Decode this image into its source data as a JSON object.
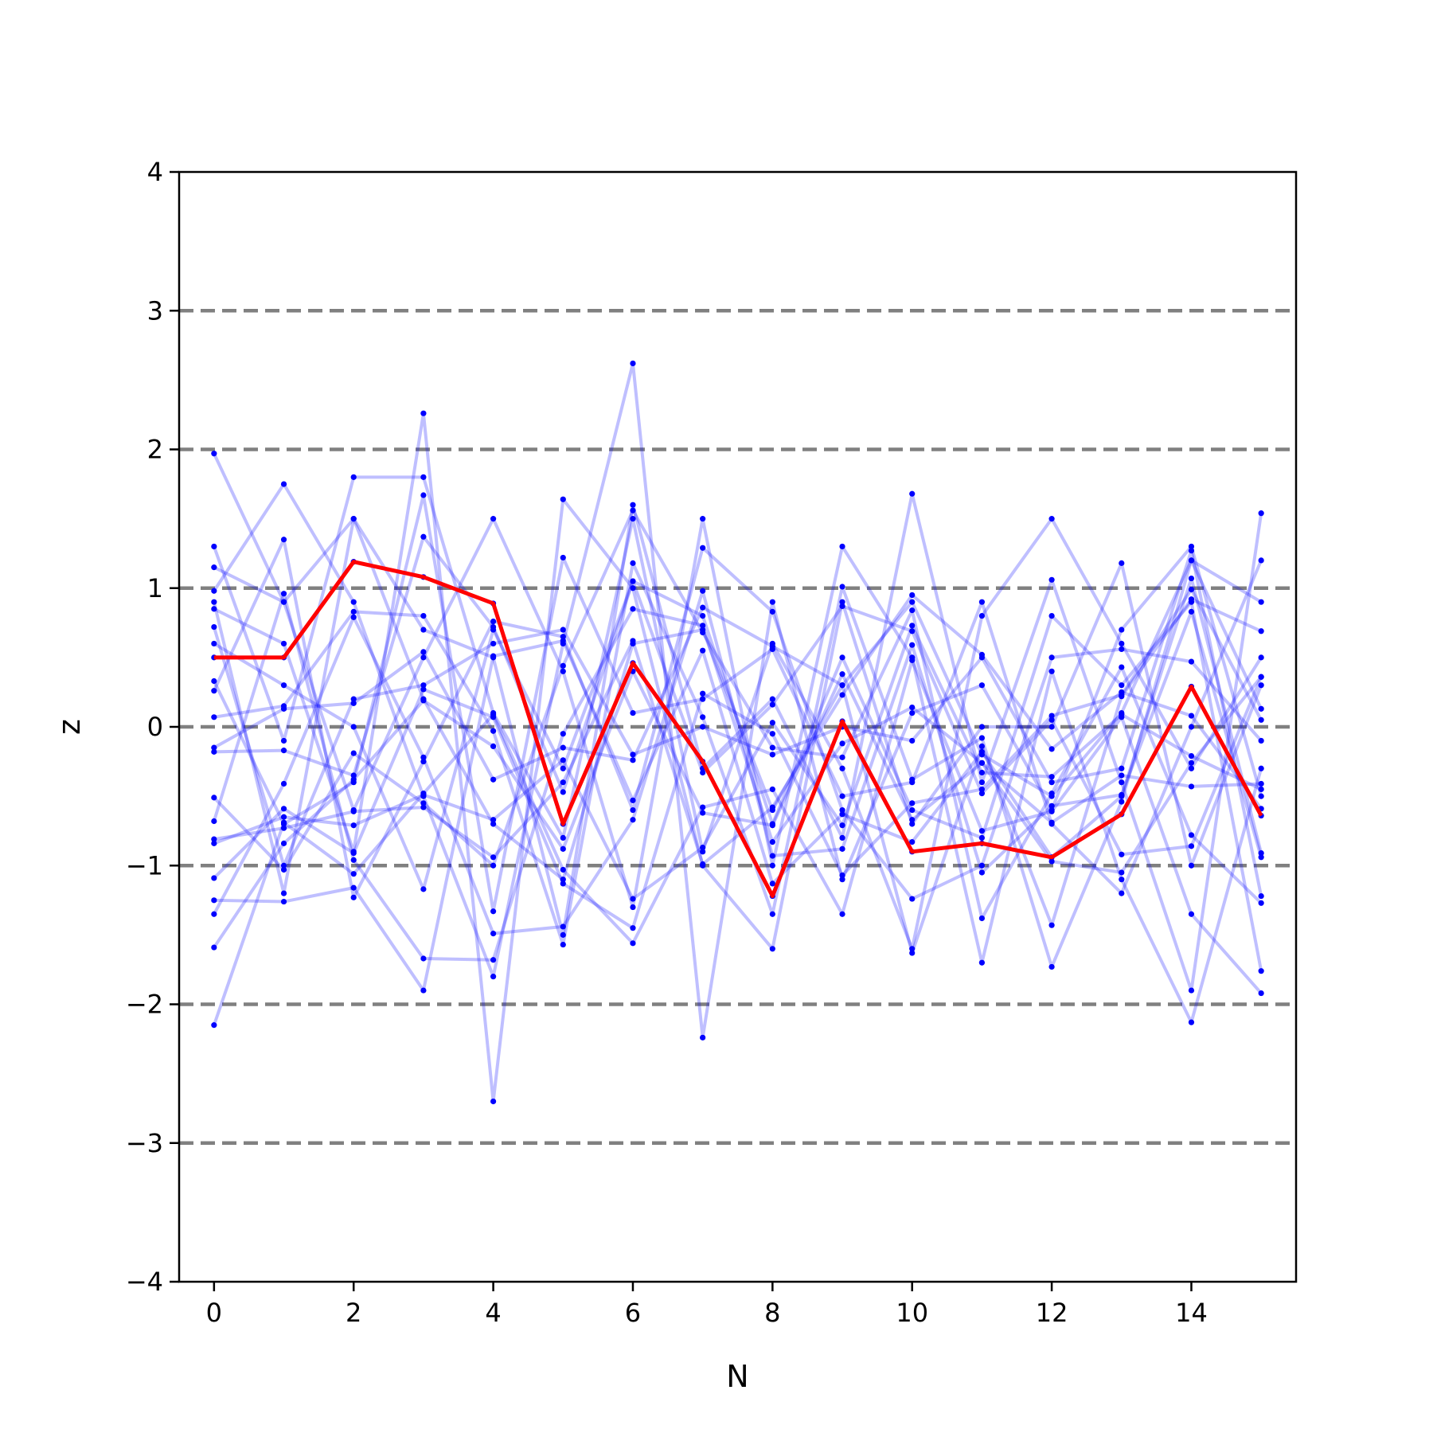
{
  "chart_data": {
    "type": "line",
    "title": "",
    "xlabel": "N",
    "ylabel": "z",
    "xlim": [
      -0.5,
      15.5
    ],
    "ylim": [
      -4,
      4
    ],
    "xticks": [
      0,
      2,
      4,
      6,
      8,
      10,
      12,
      14
    ],
    "xtick_labels": [
      "0",
      "2",
      "4",
      "6",
      "8",
      "10",
      "12",
      "14"
    ],
    "yticks": [
      -4,
      -3,
      -2,
      -1,
      0,
      1,
      2,
      3,
      4
    ],
    "ytick_labels": [
      "−4",
      "−3",
      "−2",
      "−1",
      "0",
      "1",
      "2",
      "3",
      "4"
    ],
    "reference_lines": {
      "y": [
        -3,
        -2,
        -1,
        0,
        1,
        2,
        3
      ],
      "style": "dashed",
      "color": "#808080"
    },
    "x": [
      0,
      1,
      2,
      3,
      4,
      5,
      6,
      7,
      8,
      9,
      10,
      11,
      12,
      13,
      14,
      15
    ],
    "trajectories": {
      "color": "#0000ff",
      "values": [
        [
          1.97,
          0.9,
          1.5,
          0.2,
          -0.7,
          -1.1,
          0.6,
          0.7,
          -0.6,
          0.3,
          0.9,
          -0.2,
          -0.5,
          0.1,
          1.2,
          0.9
        ],
        [
          1.3,
          -0.1,
          1.8,
          1.8,
          0.1,
          -0.8,
          1.5,
          -0.9,
          0.6,
          -0.3,
          -1.6,
          0.8,
          1.5,
          0.6,
          -0.3,
          0.5
        ],
        [
          1.15,
          0.9,
          -0.6,
          0.5,
          1.5,
          0.4,
          -1.3,
          1.5,
          -1.0,
          1.3,
          0.5,
          -1.7,
          0.4,
          -1.1,
          -2.13,
          -0.3
        ],
        [
          0.98,
          1.75,
          0.9,
          -0.5,
          -1.8,
          0.6,
          2.62,
          -2.24,
          0.9,
          -1.1,
          0.1,
          0.3,
          -0.6,
          0.7,
          1.3,
          -0.5
        ],
        [
          0.9,
          -1.2,
          1.5,
          0.7,
          0.5,
          -1.5,
          1.6,
          -0.3,
          0.2,
          -0.8,
          1.68,
          -0.4,
          1.06,
          -0.4,
          -1.9,
          1.54
        ],
        [
          0.85,
          0.6,
          -0.9,
          2.26,
          -2.7,
          1.64,
          1.0,
          -1.0,
          -1.6,
          0.9,
          -0.7,
          0.0,
          0.0,
          1.18,
          -1.0,
          0.3
        ],
        [
          0.72,
          -1.0,
          0.2,
          0.3,
          0.6,
          0.7,
          -0.2,
          0.0,
          -0.2,
          0.0,
          -0.1,
          0.5,
          -0.4,
          -0.3,
          1.27,
          -1.22
        ],
        [
          0.6,
          0.3,
          0.0,
          -1.17,
          0.7,
          -0.3,
          1.05,
          0.8,
          -0.7,
          0.5,
          -0.6,
          -0.8,
          0.8,
          0.3,
          0.9,
          -1.76
        ],
        [
          0.5,
          0.5,
          1.19,
          1.08,
          0.89,
          -0.7,
          0.46,
          -0.25,
          -1.22,
          0.04,
          -0.9,
          -0.84,
          -0.94,
          -0.63,
          0.29,
          -0.64
        ],
        [
          0.33,
          -0.7,
          -0.4,
          1.67,
          -1.33,
          1.22,
          0.1,
          0.2,
          0.56,
          -0.5,
          -0.4,
          0.9,
          -0.7,
          -1.2,
          0.0,
          1.2
        ],
        [
          0.26,
          1.35,
          -1.23,
          -0.25,
          0.76,
          0.65,
          -0.6,
          1.29,
          0.83,
          -0.6,
          -1.24,
          -1.0,
          0.5,
          0.56,
          0.47,
          -0.1
        ],
        [
          0.07,
          0.15,
          0.83,
          0.8,
          -0.03,
          -1.57,
          1.18,
          0.07,
          -1.35,
          1.01,
          -0.38,
          -0.08,
          -1.73,
          -0.54,
          1.2,
          0.13
        ],
        [
          -0.15,
          0.13,
          0.17,
          0.54,
          -0.38,
          -0.15,
          -0.24,
          0.86,
          0.58,
          0.3,
          -1.63,
          -0.14,
          -1.43,
          0.22,
          0.92,
          0.69
        ],
        [
          -0.18,
          -0.17,
          -0.35,
          1.37,
          0.72,
          -0.47,
          1.05,
          -0.33,
          0.16,
          0.87,
          0.69,
          -0.48,
          0.05,
          -0.92,
          -0.86,
          0.36
        ],
        [
          -0.51,
          -1.03,
          -0.19,
          -0.55,
          -1.0,
          0.44,
          1.56,
          0.68,
          -0.15,
          -0.22,
          0.84,
          -1.38,
          -0.48,
          0.43,
          -0.78,
          -1.27
        ],
        [
          -0.68,
          0.96,
          -0.96,
          -1.67,
          -1.68,
          -0.05,
          0.85,
          0.73,
          -0.83,
          -0.12,
          0.14,
          -0.26,
          -0.69,
          -0.35,
          -0.43,
          -0.41
        ],
        [
          -0.81,
          -0.73,
          -0.61,
          -0.58,
          -0.94,
          -0.4,
          0.62,
          -0.99,
          -0.58,
          0.23,
          0.95,
          0.52,
          -0.16,
          0.25,
          0.08,
          -0.59
        ],
        [
          -0.84,
          -0.65,
          -0.71,
          -0.49,
          -0.67,
          -0.24,
          -1.24,
          -0.87,
          0.03,
          -0.71,
          0.73,
          -0.33,
          -0.36,
          0.09,
          -0.21,
          -0.45
        ],
        [
          -1.09,
          -0.59,
          -0.91,
          0.27,
          0.07,
          -1.13,
          -1.45,
          0.24,
          -0.05,
          -1.07,
          -0.55,
          -0.45,
          0.08,
          0.23,
          0.99,
          0.05
        ],
        [
          -1.25,
          -1.26,
          -1.16,
          -1.9,
          0.51,
          0.62,
          -0.53,
          0.55,
          -1.13,
          -0.63,
          -0.83,
          -0.18,
          -0.94,
          -0.5,
          1.07,
          -0.91
        ],
        [
          -1.35,
          -0.41,
          0.79,
          -0.22,
          -1.49,
          -1.44,
          -0.67,
          0.98,
          -0.93,
          -0.88,
          0.59,
          -1.05,
          -0.57,
          -0.49,
          0.83,
          -0.94
        ],
        [
          -1.59,
          -0.84,
          -0.38,
          0.19,
          -0.14,
          -0.88,
          0.4,
          -0.62,
          -0.71,
          0.38,
          -0.67,
          -0.26,
          -0.97,
          -1.05,
          -0.26,
          0.36
        ],
        [
          -2.15,
          -0.69,
          -1.06,
          -0.48,
          0.09,
          -1.03,
          -1.56,
          -0.58,
          -0.45,
          -1.35,
          0.48,
          -0.75,
          -0.61,
          0.07,
          -1.35,
          -1.92
        ]
      ]
    },
    "series": [
      {
        "color": "#ff0000",
        "values": [
          0.5,
          0.5,
          1.19,
          1.08,
          0.89,
          -0.7,
          0.46,
          -0.25,
          -1.22,
          0.04,
          -0.9,
          -0.84,
          -0.94,
          -0.63,
          0.29,
          -0.64
        ]
      }
    ]
  }
}
